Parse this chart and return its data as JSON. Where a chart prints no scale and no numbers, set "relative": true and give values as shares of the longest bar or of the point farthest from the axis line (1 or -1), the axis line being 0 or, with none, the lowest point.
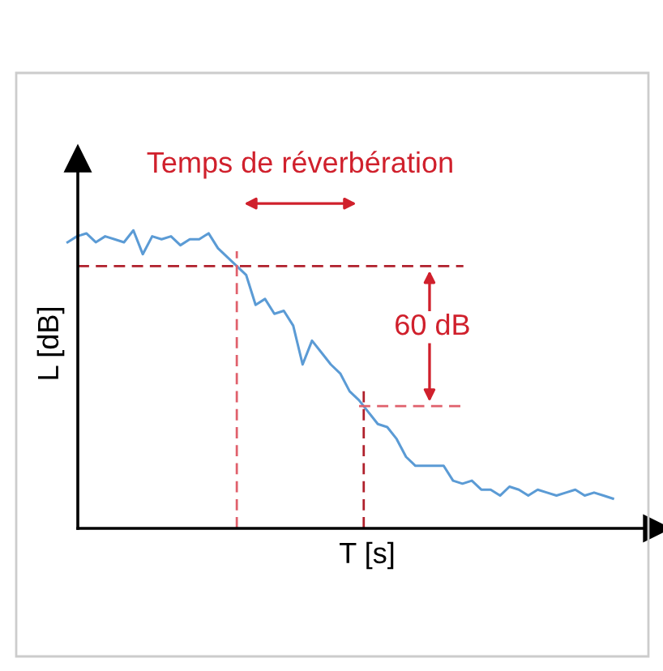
{
  "chart_data": {
    "type": "line",
    "relative": true,
    "xlabel": "T [s]",
    "ylabel": "L [dB]",
    "categories": [
      null,
      null,
      null,
      null,
      null,
      null,
      null,
      null,
      null,
      null,
      null,
      null,
      null,
      null,
      null,
      null,
      null,
      null,
      null,
      null,
      null,
      null,
      null,
      null,
      null,
      null,
      null,
      null,
      null,
      null,
      null,
      null,
      null,
      null,
      null,
      null,
      null,
      null,
      null,
      null,
      null,
      null,
      null,
      null,
      null,
      null,
      null,
      null,
      null,
      null,
      null,
      null,
      null,
      null,
      null,
      null,
      null,
      null,
      null
    ],
    "series": [
      {
        "color": "#5b9bd5",
        "values": [
          0.96,
          0.98,
          0.99,
          0.96,
          0.98,
          0.97,
          0.96,
          1,
          0.92,
          0.98,
          0.97,
          0.98,
          0.95,
          0.97,
          0.97,
          0.99,
          0.94,
          0.91,
          0.88,
          0.85,
          0.75,
          0.77,
          0.72,
          0.73,
          0.68,
          0.55,
          0.63,
          0.59,
          0.55,
          0.52,
          0.46,
          0.43,
          0.39,
          0.35,
          0.34,
          0.3,
          0.24,
          0.21,
          0.21,
          0.21,
          0.21,
          0.16,
          0.15,
          0.16,
          0.13,
          0.13,
          0.11,
          0.14,
          0.13,
          0.11,
          0.13,
          0.12,
          0.11,
          0.12,
          0.13,
          0.11,
          0.12,
          0.11,
          0.1
        ]
      }
    ],
    "ref_lines": [
      {
        "axis": "y",
        "value": 0.88,
        "color": "#b0202c",
        "line_style": "dashed"
      },
      {
        "axis": "y",
        "value": 0.41,
        "color": "#e0606c",
        "line_style": "dashed"
      }
    ],
    "annotations": [
      "Temps de réverbération",
      "60 dB"
    ],
    "marker": "none",
    "line_style": "solid"
  }
}
